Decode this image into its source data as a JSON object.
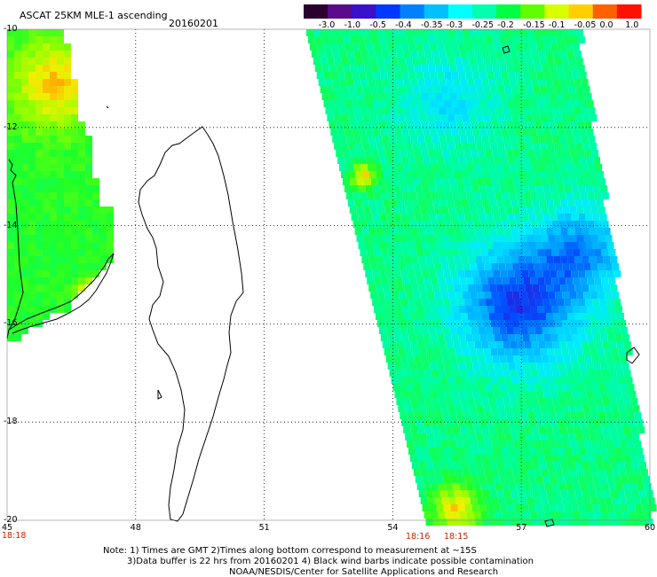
{
  "header": {
    "title": "ASCAT 25KM MLE-1 ascending",
    "date": "20160201"
  },
  "colorbar": {
    "ticks": [
      "-3.0",
      "-1.0",
      "-0.5",
      "-0.4",
      "-0.35",
      "-0.3",
      "-0.25",
      "-0.2",
      "-0.15",
      "-0.1",
      "-0.05",
      "0.0",
      "1.0"
    ],
    "colors": [
      "#2a002e",
      "#5a0a8a",
      "#3a10c8",
      "#0038ff",
      "#0080ff",
      "#00c0ff",
      "#00ffff",
      "#00ffb0",
      "#00ff40",
      "#60ff00",
      "#d8ff00",
      "#ffd000",
      "#ff6000",
      "#ff1000"
    ]
  },
  "axes": {
    "lat_labels": [
      "-10",
      "-12",
      "-14",
      "-16",
      "-18",
      "-20"
    ],
    "lon_labels": [
      "45",
      "48",
      "51",
      "54",
      "57",
      "60"
    ],
    "lat_range": [
      -20,
      -10
    ],
    "lon_range": [
      45,
      60
    ]
  },
  "time_labels": {
    "left": "18:18",
    "mid1": "18:16",
    "mid2": "18:15"
  },
  "notes": {
    "line1": "Note: 1) Times are GMT 2)Times along bottom correspond to measurement at ~15S",
    "line2": "3)Data buffer is 22 hrs from 20160201 4) Black wind barbs indicate possible contamination",
    "line3": "NOAA/NESDIS/Center for Satellite Applications and Research"
  }
}
